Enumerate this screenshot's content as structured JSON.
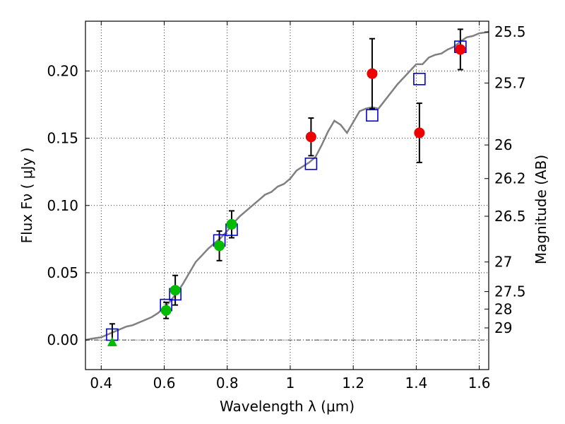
{
  "chart_data": {
    "type": "scatter",
    "xlabel": "Wavelength  λ (μm)",
    "ylabel": "Flux  Fν  ( μJy )",
    "y2label": "Magnitude (AB)",
    "xlim": [
      0.35,
      1.63
    ],
    "ylim": [
      -0.022,
      0.237
    ],
    "xticks": [
      0.4,
      0.6,
      0.8,
      1.0,
      1.2,
      1.4,
      1.6
    ],
    "xtick_labels": [
      "0.4",
      "0.6",
      "0.8",
      "1",
      "1.2",
      "1.4",
      "1.6"
    ],
    "yticks": [
      0.0,
      0.05,
      0.1,
      0.15,
      0.2
    ],
    "ytick_labels": [
      "0.00",
      "0.05",
      "0.10",
      "0.15",
      "0.20"
    ],
    "magnitude_ticks": [
      {
        "label": "25.5",
        "flux": 0.229
      },
      {
        "label": "25.7",
        "flux": 0.191
      },
      {
        "label": "26",
        "flux": 0.145
      },
      {
        "label": "26.2",
        "flux": 0.12
      },
      {
        "label": "26.5",
        "flux": 0.092
      },
      {
        "label": "27",
        "flux": 0.058
      },
      {
        "label": "27.5",
        "flux": 0.036
      },
      {
        "label": "28",
        "flux": 0.023
      },
      {
        "label": "29",
        "flux": 0.009
      }
    ],
    "grid": true,
    "zero_line": true,
    "series": [
      {
        "kind": "model",
        "color": "#808080",
        "x": [
          0.35,
          0.37,
          0.4,
          0.42,
          0.44,
          0.46,
          0.48,
          0.5,
          0.52,
          0.54,
          0.56,
          0.58,
          0.6,
          0.62,
          0.64,
          0.66,
          0.68,
          0.7,
          0.72,
          0.74,
          0.76,
          0.78,
          0.8,
          0.82,
          0.84,
          0.86,
          0.88,
          0.9,
          0.92,
          0.94,
          0.96,
          0.98,
          1.0,
          1.02,
          1.04,
          1.06,
          1.08,
          1.1,
          1.12,
          1.14,
          1.16,
          1.18,
          1.2,
          1.22,
          1.24,
          1.26,
          1.28,
          1.3,
          1.32,
          1.34,
          1.36,
          1.38,
          1.4,
          1.42,
          1.44,
          1.46,
          1.48,
          1.5,
          1.52,
          1.54,
          1.56,
          1.58,
          1.6,
          1.63
        ],
        "y": [
          0.0,
          0.001,
          0.002,
          0.004,
          0.006,
          0.008,
          0.01,
          0.011,
          0.013,
          0.015,
          0.017,
          0.02,
          0.024,
          0.029,
          0.035,
          0.042,
          0.05,
          0.058,
          0.063,
          0.068,
          0.072,
          0.076,
          0.081,
          0.087,
          0.092,
          0.096,
          0.1,
          0.104,
          0.108,
          0.11,
          0.114,
          0.116,
          0.12,
          0.126,
          0.129,
          0.132,
          0.136,
          0.145,
          0.155,
          0.163,
          0.16,
          0.154,
          0.162,
          0.17,
          0.172,
          0.173,
          0.172,
          0.178,
          0.184,
          0.19,
          0.195,
          0.2,
          0.205,
          0.205,
          0.21,
          0.212,
          0.213,
          0.216,
          0.218,
          0.222,
          0.225,
          0.226,
          0.228,
          0.229
        ]
      },
      {
        "kind": "model-photometry",
        "marker": "open-square",
        "color": "#0000dd",
        "x": [
          0.435,
          0.606,
          0.635,
          0.775,
          0.814,
          1.066,
          1.26,
          1.41,
          1.54
        ],
        "y": [
          0.004,
          0.026,
          0.034,
          0.074,
          0.082,
          0.131,
          0.167,
          0.194,
          0.218
        ]
      },
      {
        "kind": "observed-optical",
        "marker": "filled-circle",
        "color": "#00bb00",
        "x": [
          0.606,
          0.635,
          0.775,
          0.814
        ],
        "y": [
          0.022,
          0.037,
          0.07,
          0.086
        ],
        "err": [
          0.006,
          0.011,
          0.011,
          0.01
        ]
      },
      {
        "kind": "observed-optical-limit",
        "marker": "filled-triangle",
        "color": "#00bb00",
        "x": [
          0.435
        ],
        "y": [
          -0.002
        ],
        "err_up": [
          0.014
        ],
        "err_down": [
          0.002
        ]
      },
      {
        "kind": "observed-nir",
        "marker": "filled-circle",
        "color": "#ee0000",
        "x": [
          1.066,
          1.26,
          1.41,
          1.54
        ],
        "y": [
          0.151,
          0.198,
          0.154,
          0.216
        ],
        "err": [
          0.014,
          0.026,
          0.022,
          0.015
        ]
      }
    ]
  }
}
